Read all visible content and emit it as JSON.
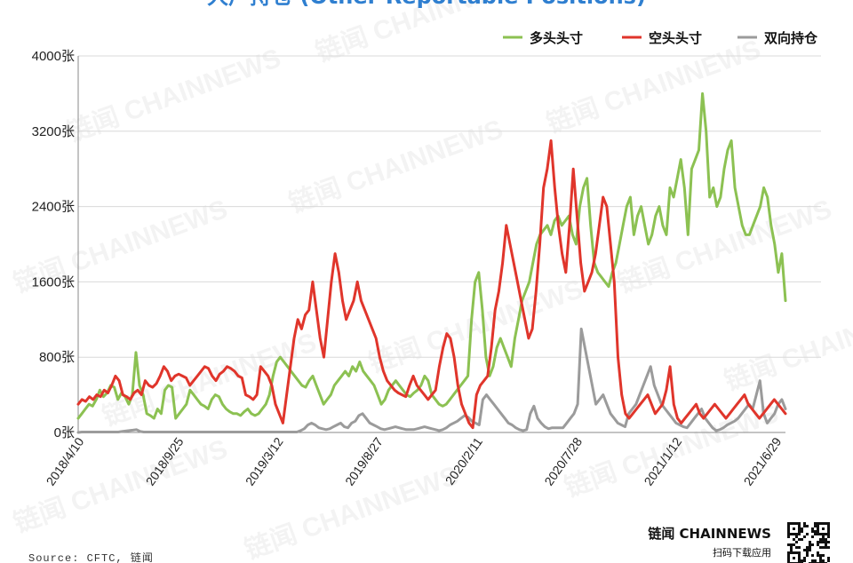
{
  "chart_data": {
    "type": "line",
    "title": "大户持仓 (Other Reportable Positions)",
    "ylim": [
      0,
      4000
    ],
    "yticks": [
      0,
      800,
      1600,
      2400,
      3200,
      4000
    ],
    "ytick_labels": [
      "0张",
      "800张",
      "1600张",
      "2400张",
      "3200张",
      "4000张"
    ],
    "xtick_labels": [
      "2018/4/10",
      "2018/9/25",
      "2019/3/12",
      "2019/8/27",
      "2020/2/11",
      "2020/7/28",
      "2021/1/12",
      "2021/6/29"
    ],
    "grid": "horizontal",
    "legend_position": "top-right",
    "series": [
      {
        "name": "多头头寸",
        "color": "#8cc152",
        "values": [
          150,
          200,
          250,
          300,
          280,
          350,
          450,
          380,
          420,
          500,
          480,
          350,
          420,
          380,
          300,
          400,
          850,
          500,
          400,
          200,
          180,
          150,
          250,
          200,
          450,
          500,
          480,
          150,
          200,
          250,
          300,
          450,
          400,
          350,
          300,
          280,
          250,
          350,
          400,
          380,
          300,
          250,
          220,
          200,
          200,
          180,
          220,
          250,
          200,
          180,
          200,
          250,
          300,
          400,
          600,
          750,
          800,
          750,
          700,
          650,
          600,
          550,
          500,
          480,
          550,
          600,
          500,
          400,
          300,
          350,
          400,
          500,
          550,
          600,
          650,
          600,
          700,
          650,
          750,
          650,
          600,
          550,
          500,
          400,
          300,
          350,
          450,
          500,
          550,
          500,
          450,
          400,
          380,
          420,
          450,
          500,
          600,
          550,
          400,
          350,
          300,
          280,
          300,
          350,
          400,
          450,
          500,
          550,
          600,
          1200,
          1600,
          1700,
          1300,
          800,
          600,
          700,
          900,
          1000,
          900,
          800,
          700,
          1000,
          1200,
          1400,
          1500,
          1600,
          1800,
          2000,
          2100,
          2150,
          2200,
          2100,
          2250,
          2300,
          2200,
          2250,
          2300,
          2100,
          2000,
          2400,
          2600,
          2700,
          2200,
          1800,
          1700,
          1650,
          1600,
          1550,
          1700,
          1800,
          2000,
          2200,
          2400,
          2500,
          2100,
          2300,
          2400,
          2200,
          2000,
          2100,
          2300,
          2400,
          2200,
          2100,
          2600,
          2500,
          2700,
          2900,
          2600,
          2100,
          2800,
          2900,
          3000,
          3600,
          3200,
          2500,
          2600,
          2400,
          2500,
          2800,
          3000,
          3100,
          2600,
          2400,
          2200,
          2100,
          2100,
          2200,
          2300,
          2400,
          2600,
          2500,
          2200,
          2000,
          1700,
          1900,
          1400
        ]
      },
      {
        "name": "空头头寸",
        "color": "#e0352b",
        "values": [
          300,
          350,
          330,
          380,
          350,
          400,
          380,
          450,
          420,
          500,
          600,
          550,
          400,
          380,
          350,
          420,
          450,
          400,
          550,
          500,
          480,
          520,
          600,
          700,
          650,
          550,
          600,
          620,
          600,
          580,
          500,
          550,
          600,
          650,
          700,
          680,
          600,
          550,
          620,
          650,
          700,
          680,
          650,
          600,
          580,
          400,
          380,
          350,
          400,
          700,
          650,
          600,
          500,
          300,
          200,
          100,
          400,
          700,
          1000,
          1200,
          1100,
          1250,
          1300,
          1600,
          1300,
          1000,
          800,
          1200,
          1600,
          1900,
          1700,
          1400,
          1200,
          1300,
          1400,
          1600,
          1400,
          1300,
          1200,
          1100,
          1000,
          800,
          650,
          550,
          500,
          450,
          420,
          400,
          380,
          500,
          600,
          500,
          450,
          400,
          350,
          400,
          450,
          700,
          900,
          1050,
          1000,
          800,
          500,
          300,
          200,
          100,
          50,
          400,
          500,
          550,
          600,
          900,
          1300,
          1500,
          1800,
          2200,
          2000,
          1800,
          1600,
          1400,
          1200,
          1000,
          1100,
          1500,
          2000,
          2600,
          2800,
          3100,
          2600,
          2200,
          1900,
          1700,
          2200,
          2800,
          2300,
          1800,
          1500,
          1600,
          1700,
          1900,
          2200,
          2500,
          2400,
          2000,
          1600,
          800,
          400,
          200,
          150,
          200,
          250,
          300,
          350,
          400,
          300,
          200,
          250,
          300,
          450,
          700,
          300,
          150,
          100,
          150,
          200,
          250,
          300,
          200,
          150,
          200,
          250,
          300,
          250,
          200,
          150,
          200,
          250,
          300,
          350,
          400,
          300,
          250,
          200,
          150,
          200,
          250,
          300,
          350,
          300,
          250,
          200
        ]
      },
      {
        "name": "双向持仓",
        "color": "#9b9b9b",
        "values": [
          0,
          5,
          5,
          5,
          5,
          5,
          5,
          5,
          5,
          5,
          5,
          5,
          10,
          15,
          20,
          25,
          30,
          10,
          5,
          5,
          5,
          5,
          5,
          5,
          5,
          5,
          5,
          5,
          5,
          5,
          5,
          5,
          5,
          5,
          5,
          5,
          5,
          5,
          5,
          5,
          5,
          5,
          5,
          5,
          5,
          5,
          5,
          5,
          5,
          5,
          5,
          5,
          5,
          5,
          5,
          5,
          5,
          5,
          5,
          5,
          5,
          20,
          40,
          80,
          100,
          80,
          50,
          40,
          30,
          40,
          60,
          80,
          100,
          60,
          50,
          100,
          120,
          180,
          200,
          150,
          100,
          80,
          60,
          40,
          30,
          40,
          50,
          60,
          50,
          40,
          30,
          30,
          30,
          40,
          50,
          60,
          50,
          40,
          30,
          20,
          30,
          50,
          80,
          100,
          120,
          150,
          180,
          160,
          120,
          100,
          80,
          350,
          400,
          350,
          300,
          250,
          200,
          150,
          100,
          80,
          50,
          30,
          20,
          30,
          200,
          280,
          150,
          100,
          60,
          40,
          50,
          50,
          50,
          50,
          100,
          150,
          200,
          300,
          1100,
          900,
          700,
          500,
          300,
          350,
          400,
          300,
          200,
          150,
          100,
          80,
          60,
          200,
          250,
          300,
          400,
          500,
          600,
          700,
          500,
          400,
          300,
          250,
          200,
          150,
          100,
          80,
          60,
          50,
          100,
          150,
          200,
          250,
          150,
          100,
          50,
          20,
          30,
          50,
          80,
          100,
          120,
          150,
          200,
          250,
          300,
          250,
          400,
          550,
          200,
          100,
          150,
          200,
          300,
          350,
          250
        ]
      }
    ]
  },
  "watermark": "链闻 CHAINNEWS",
  "source": "Source: CFTC, 链闻",
  "brand": {
    "name": "链闻 CHAINNEWS",
    "subtitle": "扫码下载应用"
  }
}
